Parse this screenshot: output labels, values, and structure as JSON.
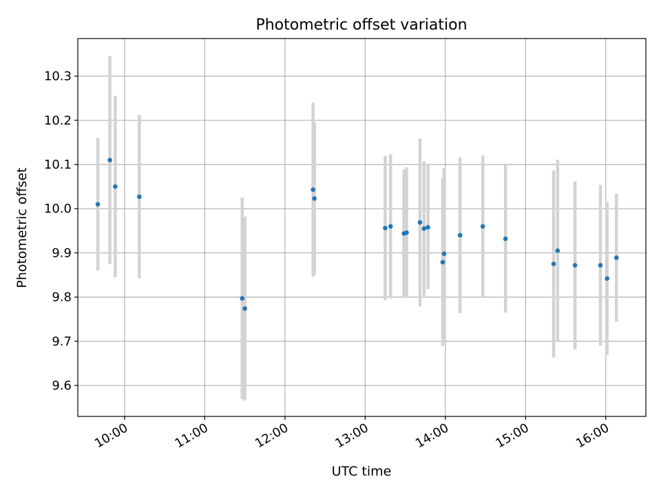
{
  "colors": {
    "background": "#ffffff",
    "grid": "#b0b0b0",
    "errorbar": "#d3d3d3",
    "point": "#1f77b4",
    "axis": "#000000"
  },
  "chart_data": {
    "type": "scatter",
    "title": "Photometric offset variation",
    "xlabel": "UTC time",
    "ylabel": "Photometric offset",
    "grid": true,
    "legend": "none",
    "xlim": [
      "09:25",
      "16:30"
    ],
    "ylim": [
      9.53,
      10.385
    ],
    "x_ticks": [
      "10:00",
      "11:00",
      "12:00",
      "13:00",
      "14:00",
      "15:00",
      "16:00"
    ],
    "y_ticks": [
      "9.6",
      "9.7",
      "9.8",
      "9.9",
      "10.0",
      "10.1",
      "10.2",
      "10.3"
    ],
    "series": [
      {
        "points": [
          {
            "x": "09:40",
            "y": 10.01,
            "err": 0.15
          },
          {
            "x": "09:49",
            "y": 10.11,
            "err": 0.235
          },
          {
            "x": "09:53",
            "y": 10.05,
            "err": 0.205
          },
          {
            "x": "10:11",
            "y": 10.027,
            "err": 0.185
          },
          {
            "x": "11:28",
            "y": 9.797,
            "err": 0.228
          },
          {
            "x": "11:30",
            "y": 9.774,
            "err": 0.208
          },
          {
            "x": "12:21",
            "y": 10.043,
            "err": 0.197
          },
          {
            "x": "12:22",
            "y": 10.023,
            "err": 0.172
          },
          {
            "x": "13:15",
            "y": 9.956,
            "err": 0.163
          },
          {
            "x": "13:19",
            "y": 9.96,
            "err": 0.163
          },
          {
            "x": "13:29",
            "y": 9.944,
            "err": 0.145
          },
          {
            "x": "13:31",
            "y": 9.946,
            "err": 0.148
          },
          {
            "x": "13:41",
            "y": 9.969,
            "err": 0.19
          },
          {
            "x": "13:44",
            "y": 9.955,
            "err": 0.152
          },
          {
            "x": "13:47",
            "y": 9.958,
            "err": 0.14
          },
          {
            "x": "13:58",
            "y": 9.879,
            "err": 0.19
          },
          {
            "x": "13:59",
            "y": 9.898,
            "err": 0.193
          },
          {
            "x": "14:11",
            "y": 9.94,
            "err": 0.176
          },
          {
            "x": "14:28",
            "y": 9.96,
            "err": 0.16
          },
          {
            "x": "14:45",
            "y": 9.932,
            "err": 0.167
          },
          {
            "x": "15:21",
            "y": 9.875,
            "err": 0.212
          },
          {
            "x": "15:24",
            "y": 9.905,
            "err": 0.206
          },
          {
            "x": "15:37",
            "y": 9.872,
            "err": 0.19
          },
          {
            "x": "15:56",
            "y": 9.872,
            "err": 0.182
          },
          {
            "x": "16:01",
            "y": 9.842,
            "err": 0.173
          },
          {
            "x": "16:08",
            "y": 9.889,
            "err": 0.145
          }
        ]
      }
    ]
  }
}
